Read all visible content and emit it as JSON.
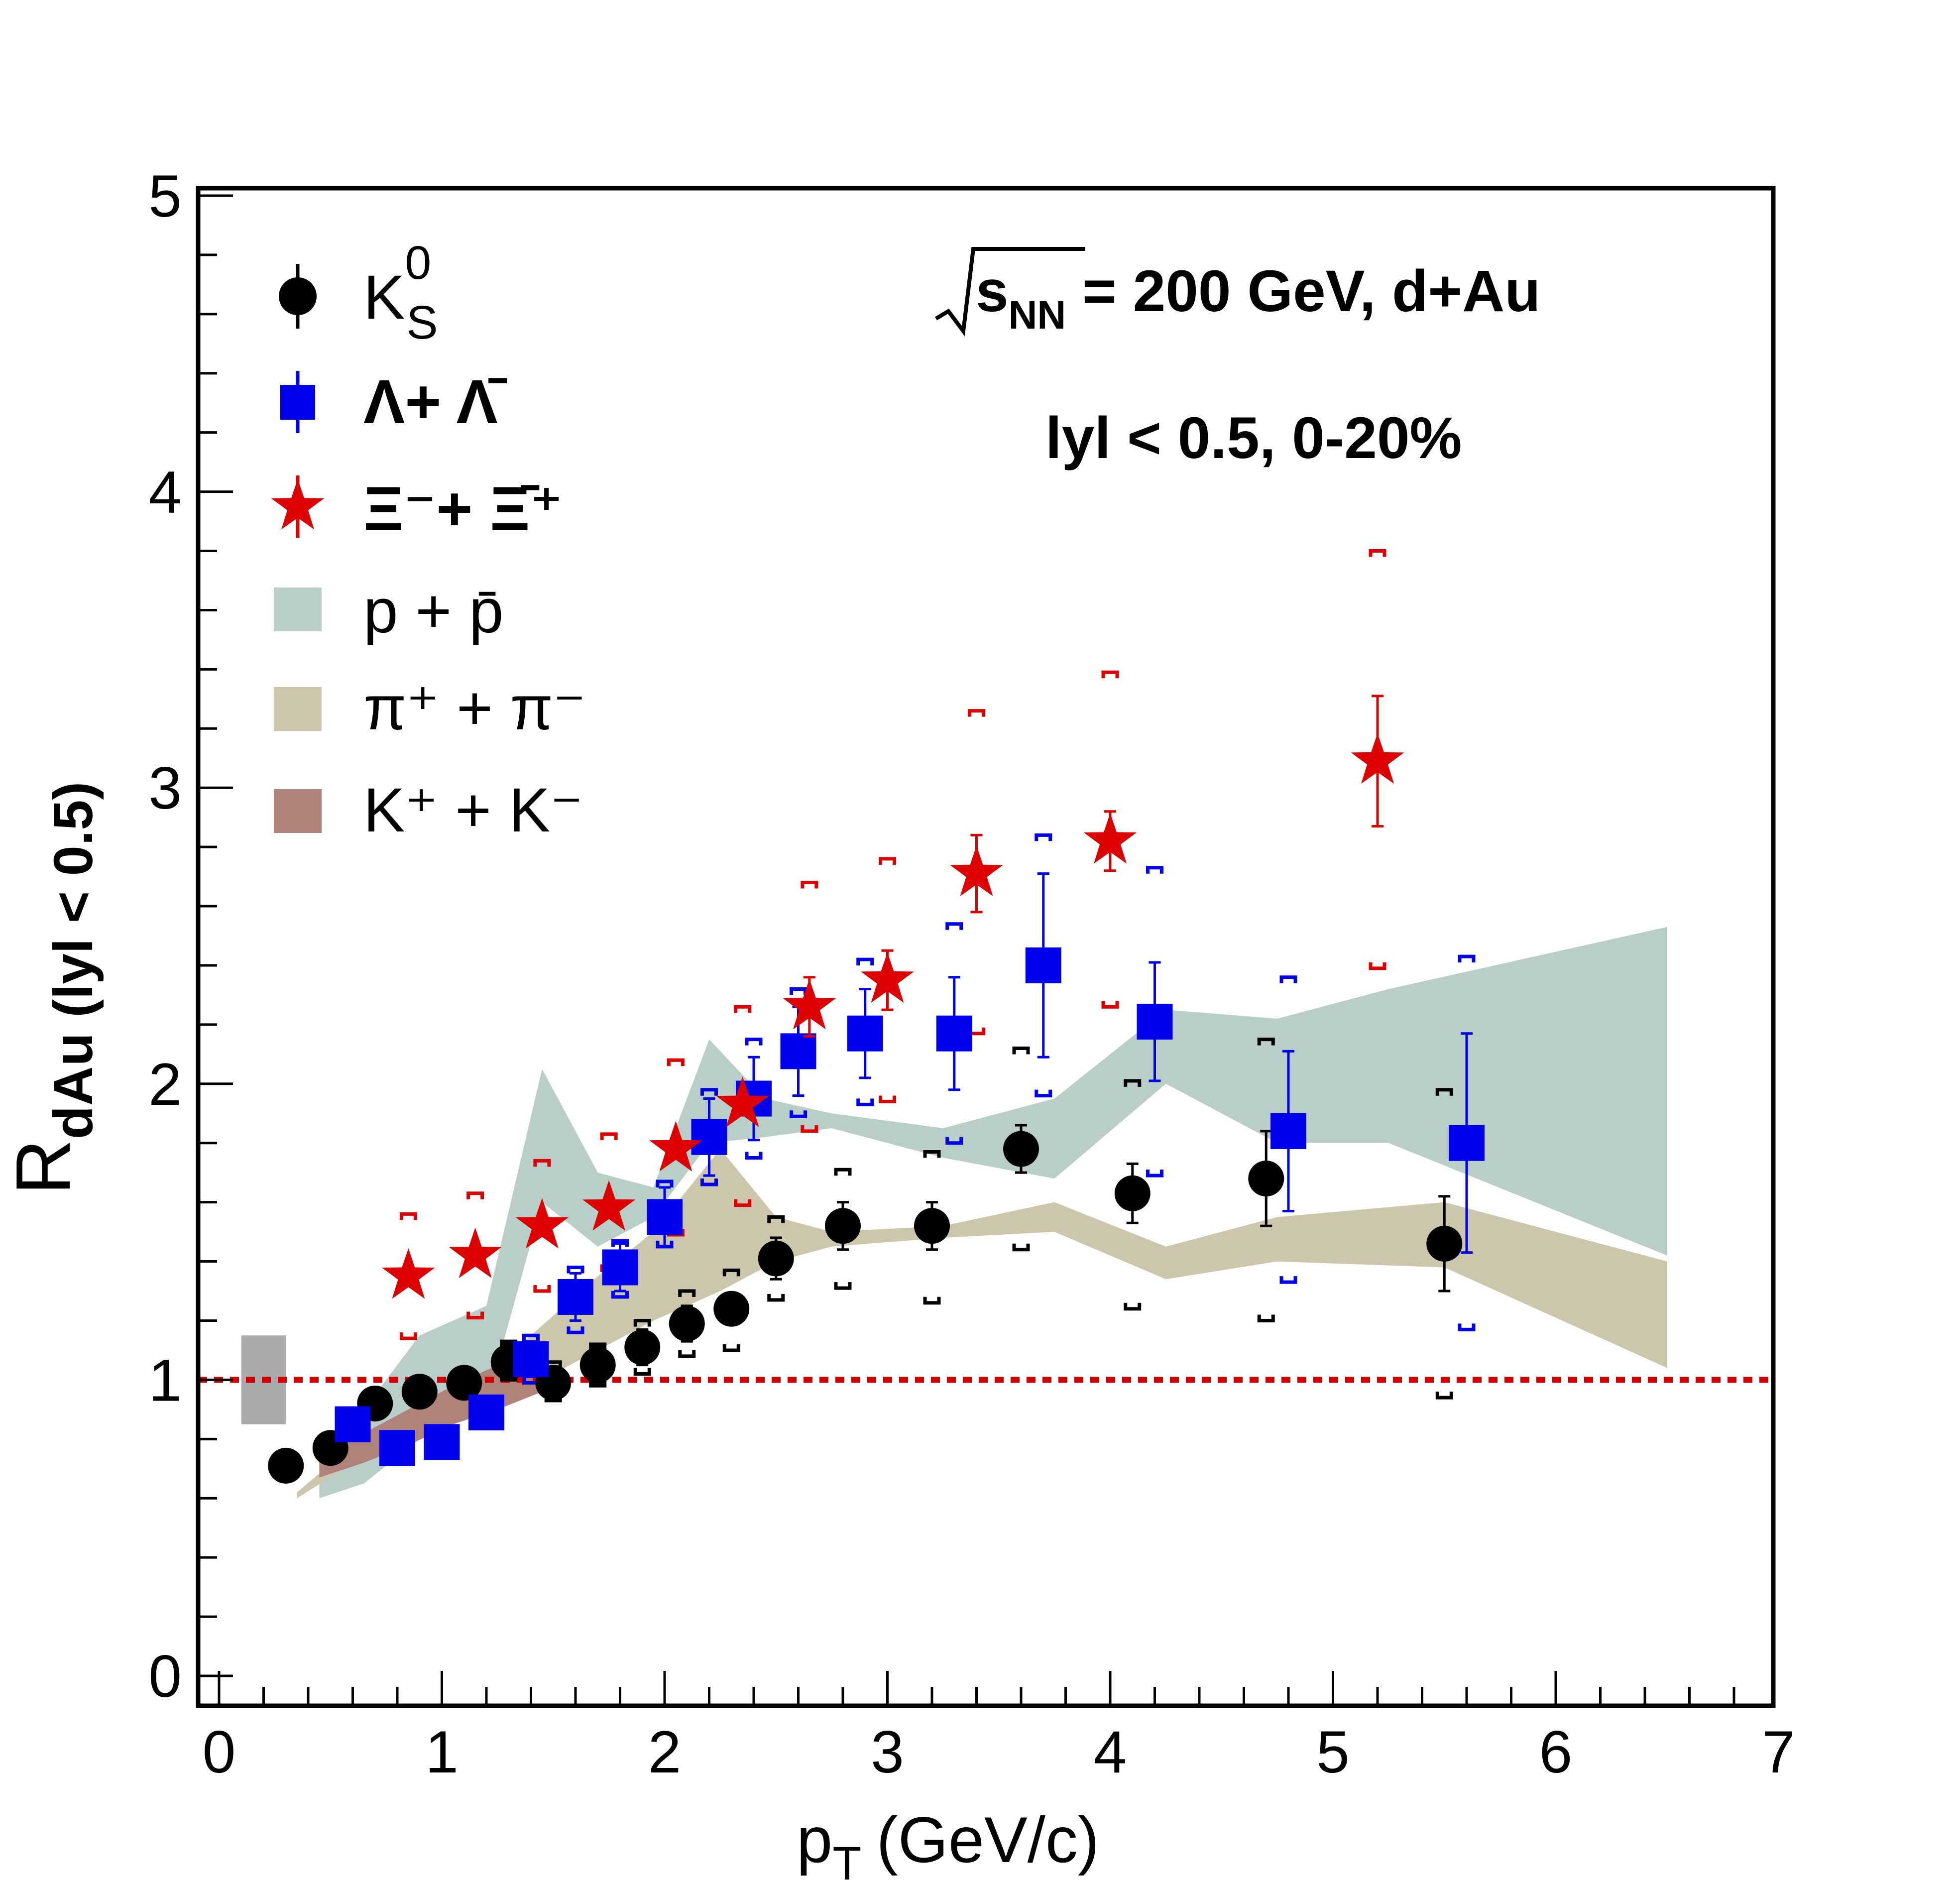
{
  "chart_data": {
    "type": "scatter",
    "xlabel": "p",
    "xlabel_sub": "T",
    "xlabel_unit": "(GeV/c)",
    "ylabel": "R",
    "ylabel_sub": "dAu (lyl < 0.5)",
    "xlim": [
      0,
      7
    ],
    "ylim": [
      0,
      5
    ],
    "x_ticks": [
      "0",
      "1",
      "2",
      "3",
      "4",
      "5",
      "6",
      "7"
    ],
    "y_ticks": [
      "0",
      "1",
      "2",
      "3",
      "4",
      "5"
    ],
    "grid": false,
    "legend_position": "top-left",
    "annotations": {
      "energy_prefix": "s",
      "energy_sub": "NN",
      "energy_text": " = 200 GeV, d+Au",
      "cut_text": "lyl < 0.5, 0-20%"
    },
    "reference_line": {
      "y": 1,
      "color": "#d40000",
      "style": "dotted"
    },
    "normalization_box": {
      "x": [
        0.1,
        0.3
      ],
      "y": [
        0.85,
        1.15
      ],
      "color": "#aaaaaa"
    },
    "legend": [
      {
        "label": "K",
        "sup": "0",
        "sub": "S",
        "marker": "circle",
        "color": "#000000"
      },
      {
        "label": "Λ+ Λ̄",
        "marker": "square",
        "color": "#0000ee"
      },
      {
        "label": "Ξ⁻+ Ξ̄⁺",
        "marker": "star",
        "color": "#dd0000"
      },
      {
        "label": "p + p̄",
        "marker": "band",
        "color": "#b9cec8"
      },
      {
        "label": "π⁺ + π⁻",
        "marker": "band",
        "color": "#ccc6ac"
      },
      {
        "label": "K⁺ + K⁻",
        "marker": "band",
        "color": "#b0837a"
      }
    ],
    "series": [
      {
        "name": "K0S",
        "marker": "circle",
        "color": "#000000",
        "points": [
          {
            "x": 0.3,
            "y": 0.71,
            "err": 0.0,
            "sys": [
              0.0,
              0.0
            ]
          },
          {
            "x": 0.5,
            "y": 0.77,
            "err": 0.02,
            "sys": [
              0.0,
              0.0
            ]
          },
          {
            "x": 0.7,
            "y": 0.92,
            "err": 0.03,
            "sys": [
              0.0,
              0.0
            ]
          },
          {
            "x": 0.9,
            "y": 0.96,
            "err": 0.05,
            "sys": [
              0.0,
              0.0
            ]
          },
          {
            "x": 1.1,
            "y": 0.99,
            "err": 0.05,
            "sys": [
              0.0,
              0.0
            ]
          },
          {
            "x": 1.3,
            "y": 1.06,
            "err": 0.06,
            "sys": [
              1.0,
              1.13
            ]
          },
          {
            "x": 1.5,
            "y": 0.99,
            "err": 0.05,
            "sys": [
              0.93,
              1.06
            ]
          },
          {
            "x": 1.7,
            "y": 1.05,
            "err": 0.06,
            "sys": [
              0.98,
              1.12
            ]
          },
          {
            "x": 1.9,
            "y": 1.11,
            "err": 0.06,
            "sys": [
              1.02,
              1.2
            ]
          },
          {
            "x": 2.1,
            "y": 1.19,
            "err": 0.06,
            "sys": [
              1.08,
              1.3
            ]
          },
          {
            "x": 2.3,
            "y": 1.24,
            "err": 0.05,
            "sys": [
              1.1,
              1.37
            ]
          },
          {
            "x": 2.5,
            "y": 1.41,
            "err": 0.07,
            "sys": [
              1.27,
              1.55
            ]
          },
          {
            "x": 2.8,
            "y": 1.52,
            "err": 0.08,
            "sys": [
              1.31,
              1.71
            ]
          },
          {
            "x": 3.2,
            "y": 1.52,
            "err": 0.08,
            "sys": [
              1.26,
              1.77
            ]
          },
          {
            "x": 3.6,
            "y": 1.78,
            "err": 0.08,
            "sys": [
              1.44,
              2.12
            ]
          },
          {
            "x": 4.1,
            "y": 1.63,
            "err": 0.1,
            "sys": [
              1.24,
              2.01
            ]
          },
          {
            "x": 4.7,
            "y": 1.68,
            "err": 0.16,
            "sys": [
              1.2,
              2.15
            ]
          },
          {
            "x": 5.5,
            "y": 1.46,
            "err": 0.16,
            "sys": [
              0.94,
              1.98
            ]
          }
        ]
      },
      {
        "name": "Lambda",
        "marker": "square",
        "color": "#0000ee",
        "points": [
          {
            "x": 0.6,
            "y": 0.85,
            "err": 0.03,
            "sys": [
              0.0,
              0.0
            ]
          },
          {
            "x": 0.8,
            "y": 0.77,
            "err": 0.03,
            "sys": [
              0.0,
              0.0
            ]
          },
          {
            "x": 1.0,
            "y": 0.79,
            "err": 0.03,
            "sys": [
              0.0,
              0.0
            ]
          },
          {
            "x": 1.2,
            "y": 0.89,
            "err": 0.04,
            "sys": [
              0.0,
              0.0
            ]
          },
          {
            "x": 1.4,
            "y": 1.07,
            "err": 0.06,
            "sys": [
              0.99,
              1.15
            ]
          },
          {
            "x": 1.6,
            "y": 1.28,
            "err": 0.08,
            "sys": [
              1.16,
              1.38
            ]
          },
          {
            "x": 1.8,
            "y": 1.38,
            "err": 0.08,
            "sys": [
              1.28,
              1.47
            ]
          },
          {
            "x": 2.0,
            "y": 1.55,
            "err": 0.1,
            "sys": [
              1.45,
              1.67
            ]
          },
          {
            "x": 2.2,
            "y": 1.82,
            "err": 0.13,
            "sys": [
              1.66,
              1.98
            ]
          },
          {
            "x": 2.4,
            "y": 1.95,
            "err": 0.14,
            "sys": [
              1.75,
              2.15
            ]
          },
          {
            "x": 2.6,
            "y": 2.11,
            "err": 0.15,
            "sys": [
              1.89,
              2.32
            ]
          },
          {
            "x": 2.9,
            "y": 2.17,
            "err": 0.15,
            "sys": [
              1.93,
              2.42
            ]
          },
          {
            "x": 3.3,
            "y": 2.17,
            "err": 0.19,
            "sys": [
              1.8,
              2.54
            ]
          },
          {
            "x": 3.7,
            "y": 2.4,
            "err": 0.31,
            "sys": [
              1.96,
              2.84
            ]
          },
          {
            "x": 4.2,
            "y": 2.21,
            "err": 0.2,
            "sys": [
              1.69,
              2.73
            ]
          },
          {
            "x": 4.8,
            "y": 1.84,
            "err": 0.27,
            "sys": [
              1.33,
              2.36
            ]
          },
          {
            "x": 5.6,
            "y": 1.8,
            "err": 0.37,
            "sys": [
              1.17,
              2.43
            ]
          }
        ]
      },
      {
        "name": "Xi",
        "marker": "star",
        "color": "#dd0000",
        "points": [
          {
            "x": 0.85,
            "y": 1.35,
            "err": 0.0,
            "sys": [
              1.14,
              1.56
            ]
          },
          {
            "x": 1.15,
            "y": 1.42,
            "err": 0.0,
            "sys": [
              1.21,
              1.63
            ]
          },
          {
            "x": 1.45,
            "y": 1.52,
            "err": 0.0,
            "sys": [
              1.3,
              1.74
            ]
          },
          {
            "x": 1.75,
            "y": 1.58,
            "err": 0.0,
            "sys": [
              1.37,
              1.83
            ]
          },
          {
            "x": 2.05,
            "y": 1.78,
            "err": 0.0,
            "sys": [
              1.49,
              2.08
            ]
          },
          {
            "x": 2.35,
            "y": 1.93,
            "err": 0.0,
            "sys": [
              1.59,
              2.26
            ]
          },
          {
            "x": 2.65,
            "y": 2.26,
            "err": 0.1,
            "sys": [
              1.84,
              2.68
            ]
          },
          {
            "x": 3.0,
            "y": 2.35,
            "err": 0.1,
            "sys": [
              1.94,
              2.76
            ]
          },
          {
            "x": 3.4,
            "y": 2.71,
            "err": 0.13,
            "sys": [
              2.17,
              3.26
            ]
          },
          {
            "x": 4.0,
            "y": 2.82,
            "err": 0.1,
            "sys": [
              2.26,
              3.39
            ]
          },
          {
            "x": 5.2,
            "y": 3.09,
            "err": 0.22,
            "sys": [
              2.39,
              3.8
            ]
          }
        ]
      }
    ],
    "bands": [
      {
        "name": "p+pbar",
        "color": "#b9cec8",
        "x": [
          0.45,
          0.65,
          0.9,
          1.2,
          1.45,
          1.7,
          1.95,
          2.2,
          2.45,
          2.75,
          3.25,
          3.75,
          4.25,
          4.75,
          5.25,
          6.5
        ],
        "upper": [
          0.75,
          0.9,
          1.15,
          1.25,
          2.05,
          1.7,
          1.65,
          2.15,
          1.95,
          1.9,
          1.85,
          1.95,
          2.25,
          2.22,
          2.32,
          2.53
        ],
        "lower": [
          0.6,
          0.65,
          0.8,
          0.92,
          1.6,
          1.45,
          1.55,
          1.8,
          1.82,
          1.85,
          1.75,
          1.68,
          2.0,
          1.8,
          1.8,
          1.42
        ]
      },
      {
        "name": "pi",
        "color": "#ccc6ac",
        "x": [
          0.35,
          0.6,
          0.85,
          1.15,
          1.4,
          1.7,
          1.95,
          2.25,
          2.5,
          2.75,
          3.25,
          3.75,
          4.25,
          4.75,
          5.5,
          6.5
        ],
        "upper": [
          0.62,
          0.78,
          0.9,
          1.0,
          1.15,
          1.35,
          1.5,
          1.78,
          1.55,
          1.5,
          1.52,
          1.6,
          1.45,
          1.55,
          1.6,
          1.4
        ],
        "lower": [
          0.6,
          0.72,
          0.8,
          0.9,
          0.98,
          1.1,
          1.2,
          1.3,
          1.4,
          1.45,
          1.48,
          1.5,
          1.34,
          1.4,
          1.38,
          1.04
        ]
      },
      {
        "name": "K",
        "color": "#b0837a",
        "x": [
          0.45,
          0.65,
          0.85,
          1.05,
          1.25,
          1.45
        ],
        "upper": [
          0.78,
          0.82,
          0.9,
          0.98,
          1.05,
          1.1
        ],
        "lower": [
          0.67,
          0.72,
          0.78,
          0.85,
          0.9,
          0.96
        ]
      }
    ]
  }
}
